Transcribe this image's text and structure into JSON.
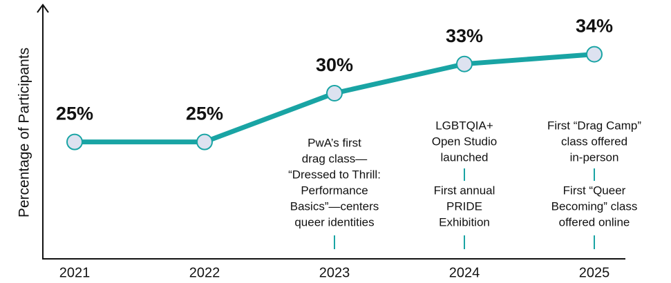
{
  "chart_data": {
    "type": "line",
    "y_label": "Percentage of Participants",
    "categories": [
      "2021",
      "2022",
      "2023",
      "2024",
      "2025"
    ],
    "values": [
      25,
      25,
      30,
      33,
      34
    ],
    "value_labels": [
      "25%",
      "25%",
      "30%",
      "33%",
      "34%"
    ],
    "color": "#19a4a4",
    "marker_color": "#dde2f0",
    "ylim": [
      13,
      39
    ],
    "annotations": [
      null,
      null,
      [
        [
          "PwA’s first",
          "drag class—",
          "“Dressed to Thrill:",
          "Performance",
          "Basics”—centers",
          "queer identities"
        ]
      ],
      [
        [
          "LGBTQIA+",
          "Open Studio",
          "launched"
        ],
        [
          "First annual",
          "PRIDE",
          "Exhibition"
        ]
      ],
      [
        [
          "First “Drag Camp”",
          "class offered",
          "in-person"
        ],
        [
          "First “Queer",
          "Becoming” class",
          "offered online"
        ]
      ]
    ]
  }
}
